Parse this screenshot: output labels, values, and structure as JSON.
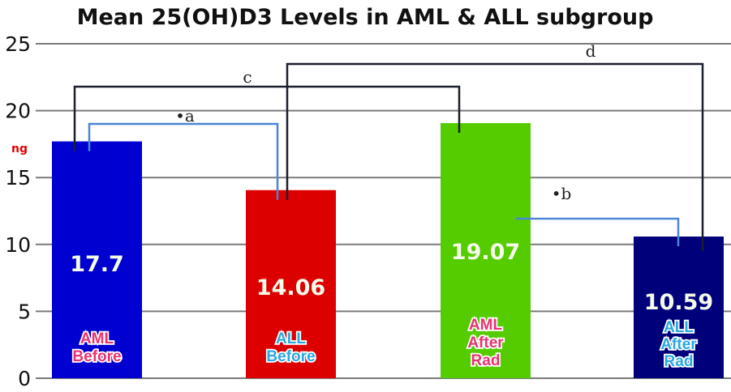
{
  "chart_data": {
    "type": "bar",
    "title": "Mean 25(OH)D3 Levels in AML & ALL subgroup",
    "ylabel": "ng",
    "ylim": [
      0,
      25
    ],
    "yticks": [
      "0",
      "5",
      "10",
      "15",
      "20",
      "25"
    ],
    "grid": true,
    "categories": [
      {
        "lines": [
          "AML",
          "Before"
        ],
        "color": "#e8336f"
      },
      {
        "lines": [
          "ALL",
          "Before"
        ],
        "color": "#29a8e0"
      },
      {
        "lines": [
          "AML",
          "After",
          "Rad"
        ],
        "color": "#e8336f"
      },
      {
        "lines": [
          "ALL",
          "After",
          "Rad"
        ],
        "color": "#29a8e0"
      }
    ],
    "values": [
      17.7,
      14.06,
      19.07,
      10.59
    ],
    "value_labels": [
      "17.7",
      "14.06",
      "19.07",
      "10.59"
    ],
    "bar_colors": [
      "#0000d0",
      "#dd0000",
      "#55cc00",
      "#00007a"
    ],
    "value_label_color": "#f4fbe8",
    "annotations": [
      {
        "label": "c",
        "from": 0,
        "to": 2,
        "color": "#1a1f2e"
      },
      {
        "label": "•a",
        "from": 0,
        "to": 1,
        "color": "#4a86d8"
      },
      {
        "label": "d",
        "from": 1,
        "to": 3,
        "color": "#1a1f2e"
      },
      {
        "label": "•b",
        "from": 2,
        "to": 3,
        "color": "#4a86d8"
      }
    ]
  }
}
